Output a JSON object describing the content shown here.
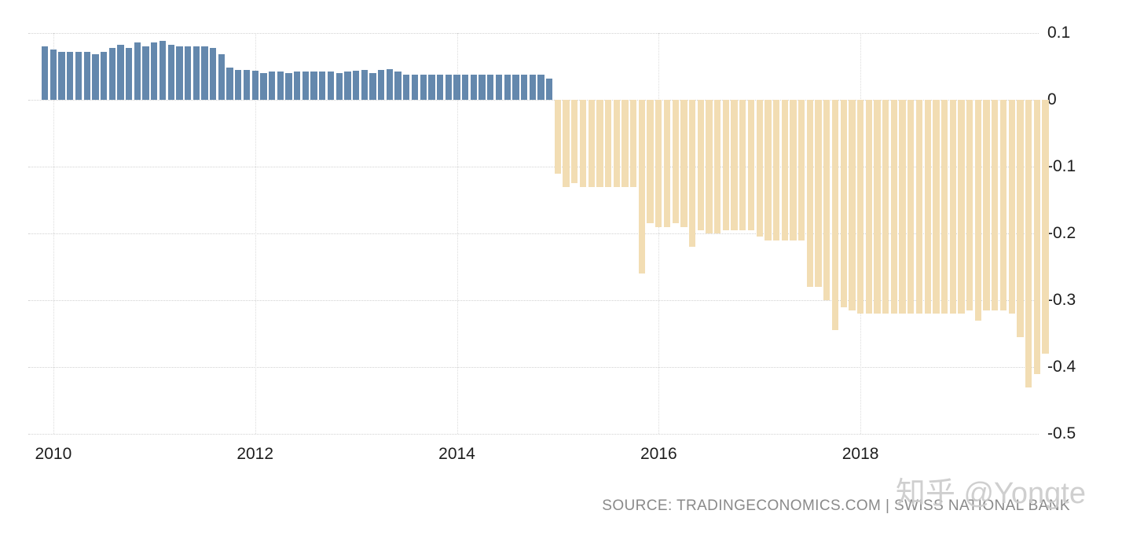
{
  "chart_data": {
    "type": "bar",
    "title": "",
    "xlabel": "",
    "ylabel": "",
    "grid": "dotted",
    "legend": "none",
    "ylim": [
      -0.5,
      0.1
    ],
    "positive_color": "#6488ad",
    "negative_color": "#f2ddb3",
    "y_ticks": [
      {
        "value": 0.1,
        "label": "0.1"
      },
      {
        "value": 0,
        "label": "0"
      },
      {
        "value": -0.1,
        "label": "-0.1"
      },
      {
        "value": -0.2,
        "label": "-0.2"
      },
      {
        "value": -0.3,
        "label": "-0.3"
      },
      {
        "value": -0.4,
        "label": "-0.4"
      },
      {
        "value": -0.5,
        "label": "-0.5"
      }
    ],
    "x_ticks": [
      {
        "label": "2010",
        "month": "2010-01"
      },
      {
        "label": "2012",
        "month": "2012-01"
      },
      {
        "label": "2014",
        "month": "2014-01"
      },
      {
        "label": "2016",
        "month": "2016-01"
      },
      {
        "label": "2018",
        "month": "2018-01"
      }
    ],
    "months": [
      "2009-12",
      "2010-01",
      "2010-02",
      "2010-03",
      "2010-04",
      "2010-05",
      "2010-06",
      "2010-07",
      "2010-08",
      "2010-09",
      "2010-10",
      "2010-11",
      "2010-12",
      "2011-01",
      "2011-02",
      "2011-03",
      "2011-04",
      "2011-05",
      "2011-06",
      "2011-07",
      "2011-08",
      "2011-09",
      "2011-10",
      "2011-11",
      "2011-12",
      "2012-01",
      "2012-02",
      "2012-03",
      "2012-04",
      "2012-05",
      "2012-06",
      "2012-07",
      "2012-08",
      "2012-09",
      "2012-10",
      "2012-11",
      "2012-12",
      "2013-01",
      "2013-02",
      "2013-03",
      "2013-04",
      "2013-05",
      "2013-06",
      "2013-07",
      "2013-08",
      "2013-09",
      "2013-10",
      "2013-11",
      "2013-12",
      "2014-01",
      "2014-02",
      "2014-03",
      "2014-04",
      "2014-05",
      "2014-06",
      "2014-07",
      "2014-08",
      "2014-09",
      "2014-10",
      "2014-11",
      "2014-12",
      "2015-01",
      "2015-02",
      "2015-03",
      "2015-04",
      "2015-05",
      "2015-06",
      "2015-07",
      "2015-08",
      "2015-09",
      "2015-10",
      "2015-11",
      "2015-12",
      "2016-01",
      "2016-02",
      "2016-03",
      "2016-04",
      "2016-05",
      "2016-06",
      "2016-07",
      "2016-08",
      "2016-09",
      "2016-10",
      "2016-11",
      "2016-12",
      "2017-01",
      "2017-02",
      "2017-03",
      "2017-04",
      "2017-05",
      "2017-06",
      "2017-07",
      "2017-08",
      "2017-09",
      "2017-10",
      "2017-11",
      "2017-12",
      "2018-01",
      "2018-02",
      "2018-03",
      "2018-04",
      "2018-05",
      "2018-06",
      "2018-07",
      "2018-08",
      "2018-09",
      "2018-10",
      "2018-11",
      "2018-12",
      "2019-01",
      "2019-02",
      "2019-03",
      "2019-04",
      "2019-05",
      "2019-06",
      "2019-07",
      "2019-08",
      "2019-09",
      "2019-10",
      "2019-11"
    ],
    "values": [
      0.08,
      0.075,
      0.072,
      0.072,
      0.072,
      0.072,
      0.068,
      0.072,
      0.078,
      0.082,
      0.078,
      0.086,
      0.08,
      0.086,
      0.088,
      0.082,
      0.08,
      0.08,
      0.08,
      0.08,
      0.078,
      0.068,
      0.048,
      0.045,
      0.045,
      0.043,
      0.04,
      0.042,
      0.042,
      0.04,
      0.042,
      0.042,
      0.042,
      0.042,
      0.042,
      0.04,
      0.042,
      0.043,
      0.045,
      0.04,
      0.045,
      0.046,
      0.042,
      0.038,
      0.038,
      0.038,
      0.038,
      0.038,
      0.038,
      0.038,
      0.038,
      0.038,
      0.038,
      0.038,
      0.038,
      0.038,
      0.038,
      0.038,
      0.038,
      0.038,
      0.032,
      -0.11,
      -0.13,
      -0.125,
      -0.13,
      -0.13,
      -0.13,
      -0.13,
      -0.13,
      -0.13,
      -0.13,
      -0.26,
      -0.185,
      -0.19,
      -0.19,
      -0.185,
      -0.19,
      -0.22,
      -0.195,
      -0.2,
      -0.2,
      -0.195,
      -0.195,
      -0.195,
      -0.195,
      -0.205,
      -0.21,
      -0.21,
      -0.21,
      -0.21,
      -0.21,
      -0.28,
      -0.28,
      -0.3,
      -0.345,
      -0.31,
      -0.315,
      -0.32,
      -0.32,
      -0.32,
      -0.32,
      -0.32,
      -0.32,
      -0.32,
      -0.32,
      -0.32,
      -0.32,
      -0.32,
      -0.32,
      -0.32,
      -0.315,
      -0.33,
      -0.315,
      -0.315,
      -0.315,
      -0.32,
      -0.355,
      -0.43,
      -0.41,
      -0.38
    ]
  },
  "footer": {
    "source_text": "SOURCE: TRADINGECONOMICS.COM | SWISS NATIONAL BANK"
  },
  "watermark": {
    "text": "知乎 @Yongte"
  }
}
